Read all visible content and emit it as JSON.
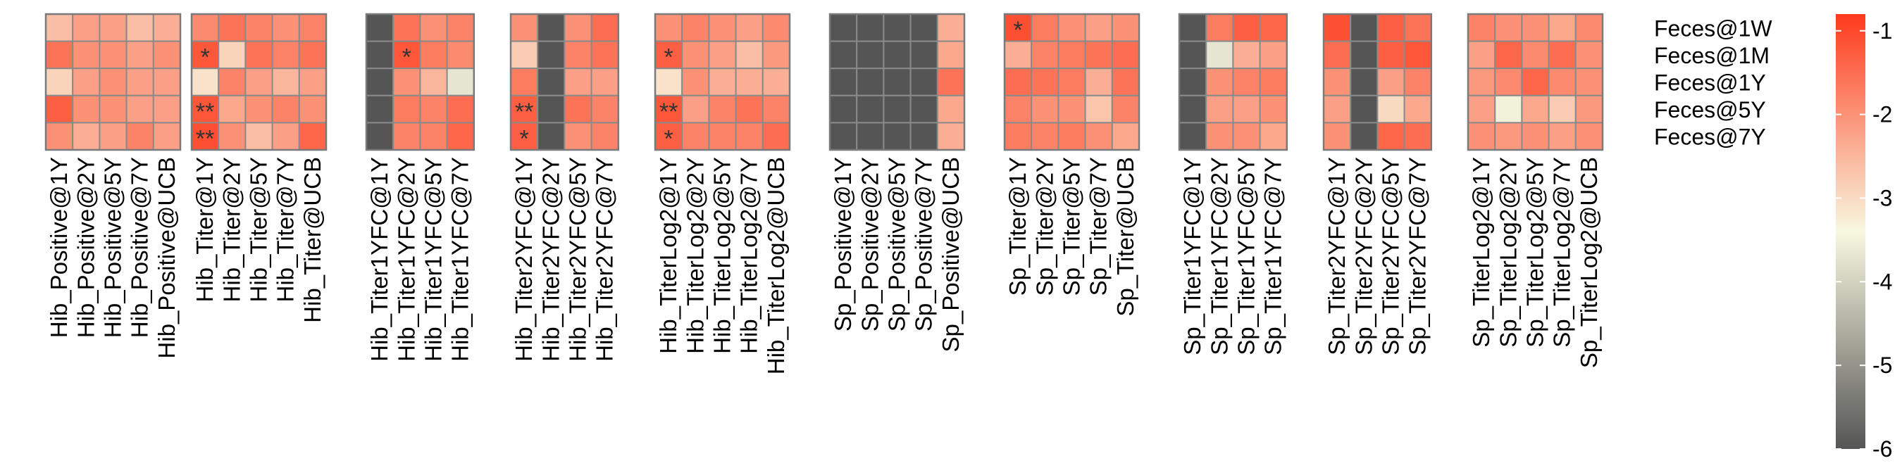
{
  "chart_data": {
    "type": "heatmap",
    "rows": [
      "Feces@1W",
      "Feces@1M",
      "Feces@1Y",
      "Feces@5Y",
      "Feces@7Y"
    ],
    "colorbar": {
      "ticks": [
        "-1",
        "-2",
        "-3",
        "-4",
        "-5",
        "-6"
      ],
      "range": [
        -6,
        -0.8
      ],
      "colors": [
        "#555555",
        "#f8f8e0",
        "#fe3a1c"
      ]
    },
    "panels": [
      {
        "columns": [
          "Hib_Positive@1Y",
          "Hib_Positive@2Y",
          "Hib_Positive@5Y",
          "Hib_Positive@7Y",
          "Hib_Positive@UCB"
        ],
        "values": [
          [
            -2.6,
            -2.2,
            -2.2,
            -2.6,
            -2.4
          ],
          [
            -1.6,
            -2.0,
            -2.0,
            -2.2,
            -2.0
          ],
          [
            -2.9,
            -2.2,
            -2.0,
            -2.2,
            -2.2
          ],
          [
            -1.3,
            -2.0,
            -2.0,
            -2.2,
            -2.2
          ],
          [
            -2.0,
            -2.4,
            -2.2,
            -1.8,
            -2.2
          ]
        ],
        "stars": [
          [
            "",
            "",
            "",
            "",
            ""
          ],
          [
            "",
            "",
            "",
            "",
            ""
          ],
          [
            "",
            "",
            "",
            "",
            ""
          ],
          [
            "",
            "",
            "",
            "",
            ""
          ],
          [
            "",
            "",
            "",
            "",
            ""
          ]
        ]
      },
      {
        "columns": [
          "Hib_Titer@1Y",
          "Hib_Titer@2Y",
          "Hib_Titer@5Y",
          "Hib_Titer@7Y",
          "Hib_Titer@UCB"
        ],
        "values": [
          [
            -1.9,
            -1.6,
            -1.8,
            -2.0,
            -1.8
          ],
          [
            -1.2,
            -2.9,
            -1.6,
            -1.8,
            -1.6
          ],
          [
            -3.1,
            -1.8,
            -2.2,
            -2.5,
            -2.2
          ],
          [
            -1.2,
            -2.3,
            -2.0,
            -1.8,
            -2.0
          ],
          [
            -1.1,
            -2.0,
            -2.6,
            -2.2,
            -1.4
          ]
        ],
        "stars": [
          [
            "",
            "",
            "",
            "",
            ""
          ],
          [
            "*",
            "",
            "",
            "",
            ""
          ],
          [
            "",
            "",
            "",
            "",
            ""
          ],
          [
            "**",
            "",
            "",
            "",
            ""
          ],
          [
            "**",
            "",
            "",
            "",
            ""
          ]
        ]
      },
      {
        "columns": [
          "Hib_Titer1YFC@1Y",
          "Hib_Titer1YFC@2Y",
          "Hib_Titer1YFC@5Y",
          "Hib_Titer1YFC@7Y"
        ],
        "values": [
          [
            -6.0,
            -1.6,
            -2.0,
            -1.8
          ],
          [
            -6.0,
            -1.2,
            -1.7,
            -1.9
          ],
          [
            -6.0,
            -2.0,
            -2.5,
            -3.7
          ],
          [
            -6.0,
            -1.7,
            -1.8,
            -1.5
          ],
          [
            -6.0,
            -1.8,
            -1.8,
            -1.4
          ]
        ],
        "stars": [
          [
            "",
            "",
            "",
            ""
          ],
          [
            "",
            "*",
            "",
            ""
          ],
          [
            "",
            "",
            "",
            ""
          ],
          [
            "",
            "",
            "",
            ""
          ],
          [
            "",
            "",
            "",
            ""
          ]
        ]
      },
      {
        "columns": [
          "Hib_Titer2YFC@1Y",
          "Hib_Titer2YFC@2Y",
          "Hib_Titer2YFC@5Y",
          "Hib_Titer2YFC@7Y"
        ],
        "values": [
          [
            -2.0,
            -6.0,
            -2.0,
            -1.5
          ],
          [
            -2.8,
            -6.0,
            -1.8,
            -1.6
          ],
          [
            -1.7,
            -6.0,
            -2.2,
            -2.2
          ],
          [
            -1.3,
            -6.0,
            -1.6,
            -1.8
          ],
          [
            -1.3,
            -6.0,
            -2.0,
            -1.8
          ]
        ],
        "stars": [
          [
            "",
            "",
            "",
            ""
          ],
          [
            "",
            "",
            "",
            ""
          ],
          [
            "",
            "",
            "",
            ""
          ],
          [
            "**",
            "",
            "",
            ""
          ],
          [
            "*",
            "",
            "",
            ""
          ]
        ]
      },
      {
        "columns": [
          "Hib_TiterLog2@1Y",
          "Hib_TiterLog2@2Y",
          "Hib_TiterLog2@5Y",
          "Hib_TiterLog2@7Y",
          "Hib_TiterLog2@UCB"
        ],
        "values": [
          [
            -2.0,
            -1.8,
            -2.0,
            -2.2,
            -1.9
          ],
          [
            -1.3,
            -2.0,
            -2.2,
            -2.6,
            -2.1
          ],
          [
            -3.1,
            -2.0,
            -2.4,
            -2.4,
            -2.4
          ],
          [
            -1.2,
            -2.2,
            -1.8,
            -1.6,
            -1.8
          ],
          [
            -1.3,
            -1.8,
            -1.8,
            -1.8,
            -1.5
          ]
        ],
        "stars": [
          [
            "",
            "",
            "",
            "",
            ""
          ],
          [
            "*",
            "",
            "",
            "",
            ""
          ],
          [
            "",
            "",
            "",
            "",
            ""
          ],
          [
            "**",
            "",
            "",
            "",
            ""
          ],
          [
            "*",
            "",
            "",
            "",
            ""
          ]
        ]
      },
      {
        "columns": [
          "Sp_Positive@1Y",
          "Sp_Positive@2Y",
          "Sp_Positive@5Y",
          "Sp_Positive@7Y",
          "Sp_Positive@UCB"
        ],
        "values": [
          [
            -6.0,
            -6.0,
            -6.0,
            -6.0,
            -2.4
          ],
          [
            -6.0,
            -6.0,
            -6.0,
            -6.0,
            -2.3
          ],
          [
            -6.0,
            -6.0,
            -6.0,
            -6.0,
            -1.6
          ],
          [
            -6.0,
            -6.0,
            -6.0,
            -6.0,
            -2.3
          ],
          [
            -6.0,
            -6.0,
            -6.0,
            -6.0,
            -2.4
          ]
        ],
        "stars": [
          [
            "",
            "",
            "",
            "",
            ""
          ],
          [
            "",
            "",
            "",
            "",
            ""
          ],
          [
            "",
            "",
            "",
            "",
            ""
          ],
          [
            "",
            "",
            "",
            "",
            ""
          ],
          [
            "",
            "",
            "",
            "",
            ""
          ]
        ]
      },
      {
        "columns": [
          "Sp_Titer@1Y",
          "Sp_Titer@2Y",
          "Sp_Titer@5Y",
          "Sp_Titer@7Y",
          "Sp_Titer@UCB"
        ],
        "values": [
          [
            -1.1,
            -1.7,
            -2.0,
            -2.2,
            -2.0
          ],
          [
            -2.4,
            -1.8,
            -1.7,
            -1.6,
            -1.5
          ],
          [
            -1.5,
            -1.6,
            -1.7,
            -2.4,
            -1.6
          ],
          [
            -1.8,
            -2.0,
            -2.0,
            -2.7,
            -1.8
          ],
          [
            -1.7,
            -1.8,
            -1.7,
            -2.0,
            -2.3
          ]
        ],
        "stars": [
          [
            "*",
            "",
            "",
            "",
            ""
          ],
          [
            "",
            "",
            "",
            "",
            ""
          ],
          [
            "",
            "",
            "",
            "",
            ""
          ],
          [
            "",
            "",
            "",
            "",
            ""
          ],
          [
            "",
            "",
            "",
            "",
            ""
          ]
        ]
      },
      {
        "columns": [
          "Sp_Titer1YFC@1Y",
          "Sp_Titer1YFC@2Y",
          "Sp_Titer1YFC@5Y",
          "Sp_Titer1YFC@7Y"
        ],
        "values": [
          [
            -6.0,
            -1.7,
            -1.3,
            -1.4
          ],
          [
            -6.0,
            -3.7,
            -2.4,
            -2.2
          ],
          [
            -6.0,
            -2.0,
            -1.8,
            -1.7
          ],
          [
            -6.0,
            -2.2,
            -2.2,
            -2.0
          ],
          [
            -6.0,
            -2.0,
            -2.0,
            -2.3
          ]
        ],
        "stars": [
          [
            "",
            "",
            "",
            ""
          ],
          [
            "",
            "",
            "",
            ""
          ],
          [
            "",
            "",
            "",
            ""
          ],
          [
            "",
            "",
            "",
            ""
          ],
          [
            "",
            "",
            "",
            ""
          ]
        ]
      },
      {
        "columns": [
          "Sp_Titer2YFC@1Y",
          "Sp_Titer2YFC@2Y",
          "Sp_Titer2YFC@5Y",
          "Sp_Titer2YFC@7Y"
        ],
        "values": [
          [
            -1.1,
            -6.0,
            -1.3,
            -1.6
          ],
          [
            -1.5,
            -6.0,
            -1.3,
            -1.2
          ],
          [
            -2.0,
            -6.0,
            -2.2,
            -1.8
          ],
          [
            -2.2,
            -6.0,
            -3.0,
            -2.3
          ],
          [
            -2.0,
            -6.0,
            -1.4,
            -1.5
          ]
        ],
        "stars": [
          [
            "",
            "",
            "",
            ""
          ],
          [
            "",
            "",
            "",
            ""
          ],
          [
            "",
            "",
            "",
            ""
          ],
          [
            "",
            "",
            "",
            ""
          ],
          [
            "",
            "",
            "",
            ""
          ]
        ]
      },
      {
        "columns": [
          "Sp_TiterLog2@1Y",
          "Sp_TiterLog2@2Y",
          "Sp_TiterLog2@5Y",
          "Sp_TiterLog2@7Y",
          "Sp_TiterLog2@UCB"
        ],
        "values": [
          [
            -1.8,
            -2.0,
            -2.0,
            -2.3,
            -1.9
          ],
          [
            -2.2,
            -1.4,
            -1.9,
            -1.5,
            -2.0
          ],
          [
            -2.1,
            -1.9,
            -1.4,
            -1.9,
            -2.0
          ],
          [
            -2.2,
            -3.5,
            -2.3,
            -2.8,
            -2.1
          ],
          [
            -2.0,
            -2.1,
            -2.0,
            -2.2,
            -2.0
          ]
        ],
        "stars": [
          [
            "",
            "",
            "",
            "",
            ""
          ],
          [
            "",
            "",
            "",
            "",
            ""
          ],
          [
            "",
            "",
            "",
            "",
            ""
          ],
          [
            "",
            "",
            "",
            "",
            ""
          ],
          [
            "",
            "",
            "",
            "",
            ""
          ]
        ]
      }
    ]
  }
}
